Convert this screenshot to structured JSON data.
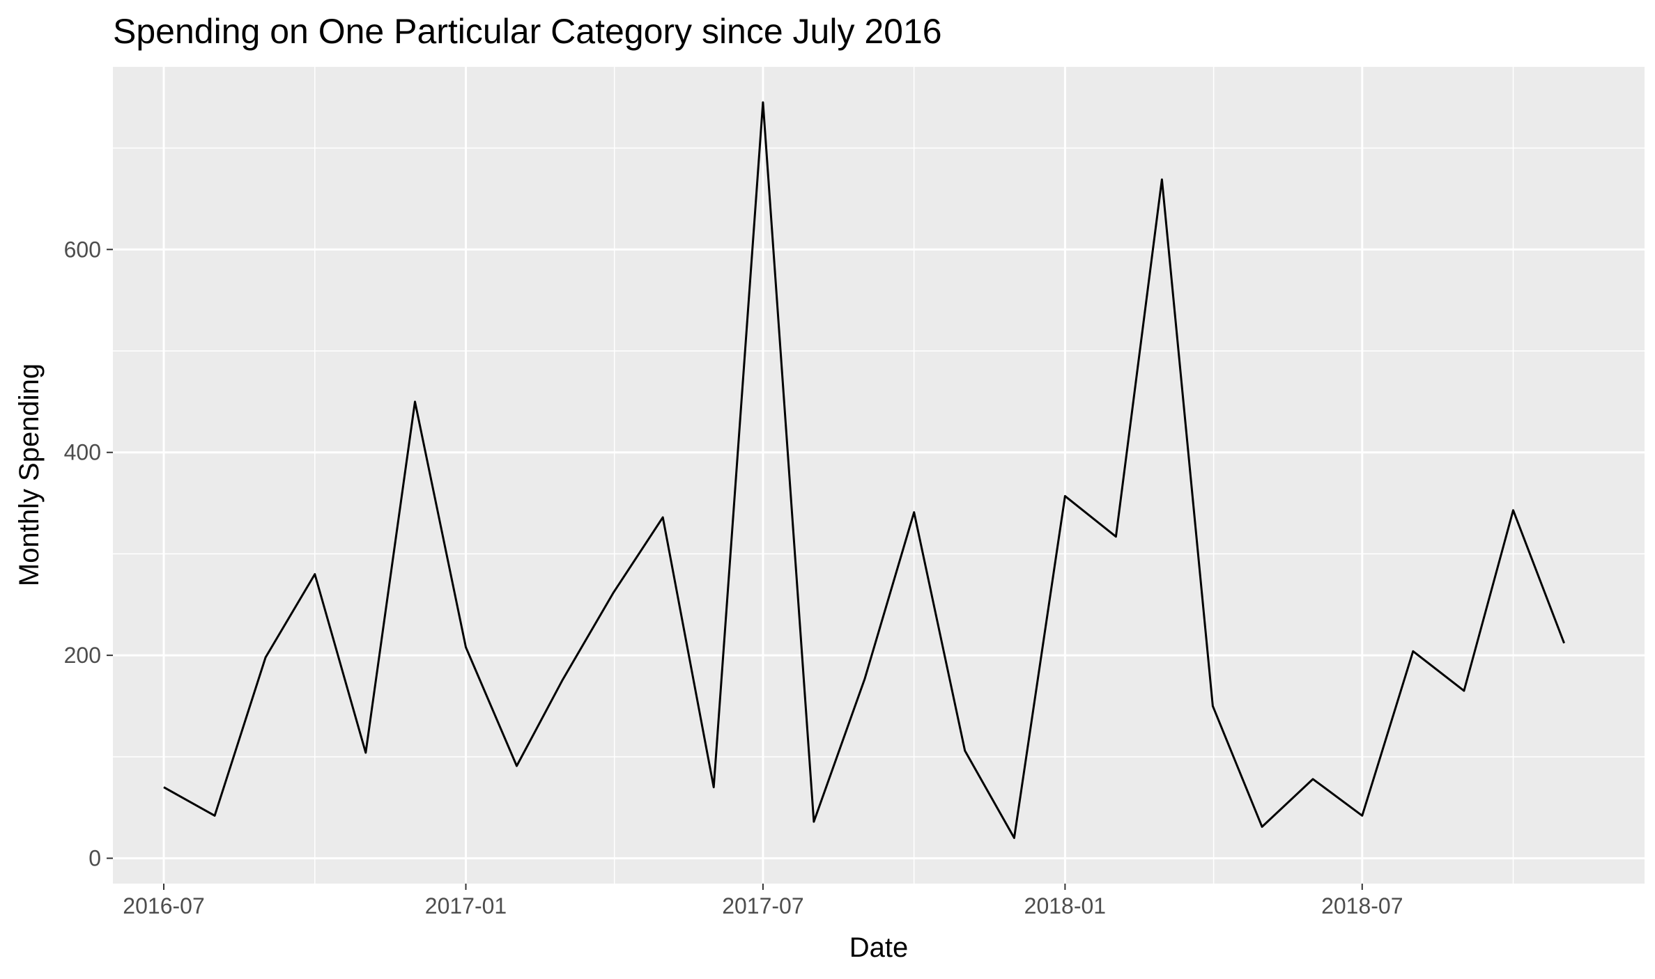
{
  "chart_data": {
    "type": "line",
    "title": "Spending on One Particular Category since July 2016",
    "xlabel": "Date",
    "ylabel": "Monthly Spending",
    "x_ticks": [
      "2016-07",
      "2017-01",
      "2017-07",
      "2018-01",
      "2018-07"
    ],
    "y_ticks": [
      "0",
      "200",
      "400",
      "600"
    ],
    "ylim": [
      -25,
      780
    ],
    "xlim": [
      "2016-05-31",
      "2018-12-20"
    ],
    "grid": true,
    "legend": "none",
    "colors": {
      "panel": "#ebebeb",
      "grid": "#ffffff",
      "line": "#000000",
      "ticks": "#4d4d4d"
    },
    "series": [
      {
        "x": [
          "2016-07-01",
          "2016-08-01",
          "2016-09-01",
          "2016-10-01",
          "2016-11-01",
          "2016-12-01",
          "2017-01-01",
          "2017-02-01",
          "2017-03-01",
          "2017-04-01",
          "2017-05-01",
          "2017-06-01",
          "2017-07-01",
          "2017-08-01",
          "2017-09-01",
          "2017-10-01",
          "2017-11-01",
          "2017-12-01",
          "2018-01-01",
          "2018-02-01",
          "2018-03-01",
          "2018-04-01",
          "2018-05-01",
          "2018-06-01",
          "2018-07-01",
          "2018-08-01",
          "2018-09-01",
          "2018-10-01",
          "2018-11-01"
        ],
        "y": [
          70,
          42,
          198,
          280,
          104,
          450,
          208,
          91,
          176,
          262,
          336,
          70,
          745,
          36,
          177,
          341,
          106,
          20,
          357,
          317,
          669,
          150,
          31,
          78,
          42,
          204,
          165,
          343,
          212
        ]
      }
    ]
  }
}
